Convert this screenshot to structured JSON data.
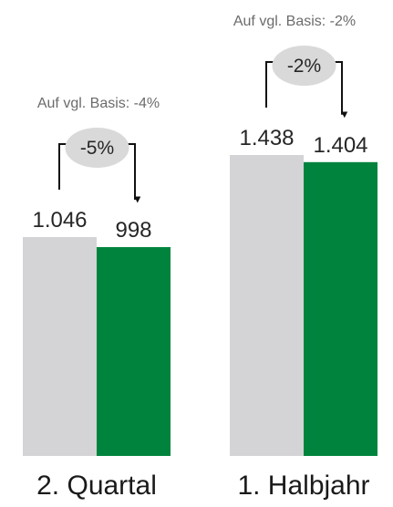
{
  "chart_data": {
    "type": "bar",
    "categories": [
      "2. Quartal",
      "1. Halbjahr"
    ],
    "series": [
      {
        "color": "#d4d4d6",
        "values": [
          1046,
          1438
        ],
        "value_labels": [
          "1.046",
          "1.438"
        ]
      },
      {
        "color": "#00843d",
        "values": [
          998,
          1404
        ],
        "value_labels": [
          "998",
          "1.404"
        ]
      }
    ],
    "annotations": [
      {
        "basis": "Auf vgl. Basis: -4%",
        "change": "-5%"
      },
      {
        "basis": "Auf vgl. Basis: -2%",
        "change": "-2%"
      }
    ]
  }
}
